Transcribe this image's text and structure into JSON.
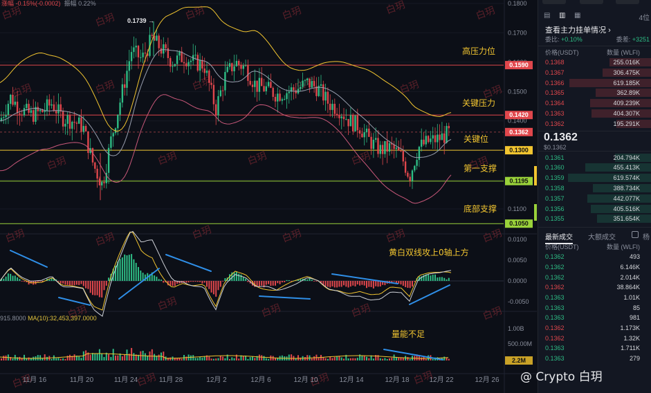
{
  "top_info": {
    "change": "涨幅 -0.15%(-0.0002)",
    "amplitude": "振幅 0.22%"
  },
  "price_axis": {
    "labels": [
      "0.1800",
      "0.1700",
      "0.1600",
      "0.1500",
      "0.1400",
      "0.1300",
      "0.1200",
      "0.1100"
    ],
    "macd_labels": [
      "0.0100",
      "0.0050",
      "0.0000",
      "-0.0050"
    ],
    "vol_labels": [
      "1.00B",
      "500.00M"
    ]
  },
  "date_axis": [
    "11月 16",
    "11月 20",
    "11月 24",
    "11月 28",
    "12月 2",
    "12月 6",
    "12月 10",
    "12月 14",
    "12月 18",
    "12月 22",
    "12月 26"
  ],
  "high_label": "0.1739",
  "levels": [
    {
      "price": "0.1590",
      "name": "高压力位",
      "color": "#e0474c"
    },
    {
      "price": "0.1420",
      "name": "关键压力",
      "color": "#e0474c"
    },
    {
      "price": "0.1362",
      "name": "",
      "color": "#e0474c"
    },
    {
      "price": "0.1300",
      "name": "关键位",
      "color": "#f2c530"
    },
    {
      "price": "0.1195",
      "name": "第一支撑",
      "color": "#9ad23a"
    },
    {
      "price": "0.1050",
      "name": "底部支撑",
      "color": "#9ad23a"
    }
  ],
  "annotations": {
    "macd": "黄白双线攻上0轴上方",
    "volume": "量能不足"
  },
  "ma_legend": {
    "left": "915.8000",
    "ma": "MA(10):32,453,397.0000"
  },
  "volume_tag": "2.2M",
  "watermark": "白玥",
  "credit": "@ Crypto 白玥",
  "colors": {
    "up": "#2ebd85",
    "down": "#e0474c",
    "yellow": "#f2c530",
    "white": "#cfd2d8",
    "pink": "#c9587a"
  },
  "panel": {
    "top_right": "4位",
    "orderbook_link": "查看主力挂单情况",
    "ratio_left_label": "委比:",
    "ratio_left_value": "+0.10%",
    "ratio_right_label": "委差:",
    "ratio_right_value": "+3251",
    "col_price": "价格(USDT)",
    "col_qty": "数量 (WLFI)",
    "asks": [
      {
        "p": "0.1368",
        "q": "255.016K",
        "w": 60
      },
      {
        "p": "0.1367",
        "q": "306.475K",
        "w": 70
      },
      {
        "p": "0.1366",
        "q": "619.185K",
        "w": 118
      },
      {
        "p": "0.1365",
        "q": "362.89K",
        "w": 80
      },
      {
        "p": "0.1364",
        "q": "409.239K",
        "w": 88
      },
      {
        "p": "0.1363",
        "q": "404.307K",
        "w": 86
      },
      {
        "p": "0.1362",
        "q": "195.291K",
        "w": 50
      }
    ],
    "last_price": "0.1362",
    "last_price_usd": "$0.1362",
    "bids": [
      {
        "p": "0.1361",
        "q": "204.794K",
        "w": 52
      },
      {
        "p": "0.1360",
        "q": "455.413K",
        "w": 95
      },
      {
        "p": "0.1359",
        "q": "619.574K",
        "w": 120
      },
      {
        "p": "0.1358",
        "q": "388.734K",
        "w": 84
      },
      {
        "p": "0.1357",
        "q": "442.077K",
        "w": 92
      },
      {
        "p": "0.1356",
        "q": "405.516K",
        "w": 87
      },
      {
        "p": "0.1355",
        "q": "351.654K",
        "w": 78
      }
    ],
    "tab_latest": "最新成交",
    "tab_big": "大额成交",
    "tab_extra": "杨",
    "trades": [
      {
        "p": "0.1362",
        "q": "493",
        "side": "g"
      },
      {
        "p": "0.1362",
        "q": "6.146K",
        "side": "g"
      },
      {
        "p": "0.1362",
        "q": "2.014K",
        "side": "g"
      },
      {
        "p": "0.1362",
        "q": "38.864K",
        "side": "r"
      },
      {
        "p": "0.1363",
        "q": "1.01K",
        "side": "g"
      },
      {
        "p": "0.1363",
        "q": "85",
        "side": "g"
      },
      {
        "p": "0.1363",
        "q": "981",
        "side": "g"
      },
      {
        "p": "0.1362",
        "q": "1.173K",
        "side": "r"
      },
      {
        "p": "0.1362",
        "q": "1.32K",
        "side": "r"
      },
      {
        "p": "0.1363",
        "q": "1.711K",
        "side": "g"
      },
      {
        "p": "0.1363",
        "q": "279",
        "side": "g"
      }
    ]
  }
}
